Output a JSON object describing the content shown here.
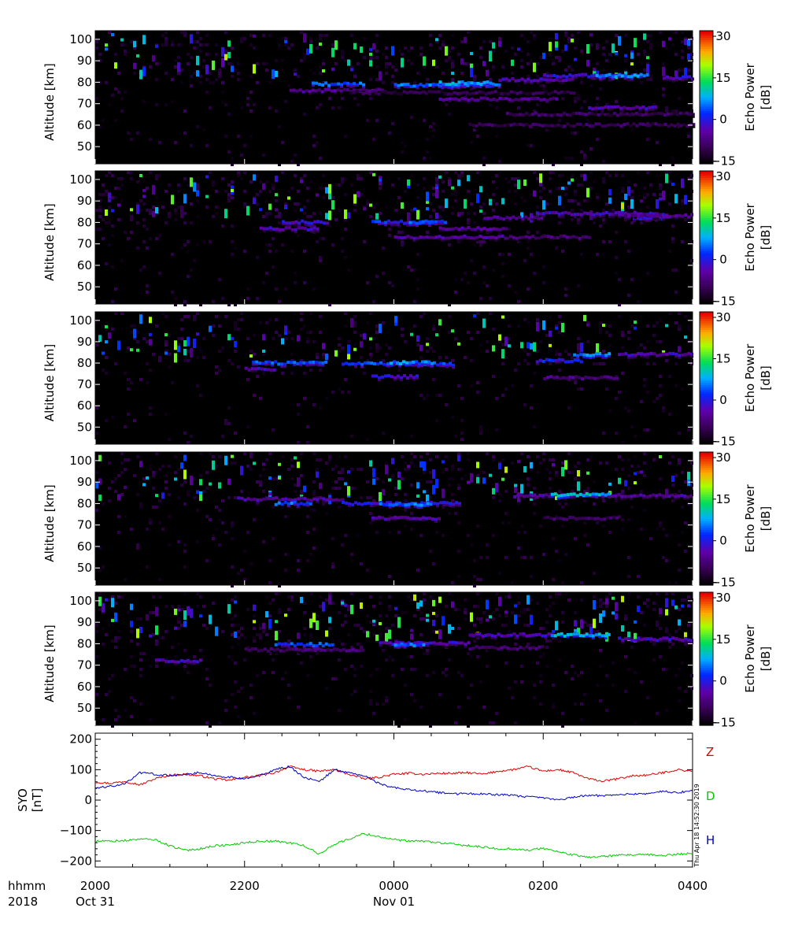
{
  "chart_data": [
    {
      "type": "heatmap",
      "panel": 1,
      "ylabel": "Altitude [km]",
      "yticks": [
        50,
        60,
        70,
        80,
        90,
        100
      ],
      "ylim": [
        42,
        104
      ],
      "colorbar": {
        "label_line1": "Echo Power",
        "label_line2": "[dB]",
        "ticks": [
          -15,
          0,
          15,
          30
        ],
        "range": [
          -16,
          32
        ]
      },
      "layers": [
        {
          "alt": 79,
          "t0": 2.9,
          "t1": 3.6,
          "db": 4
        },
        {
          "alt": 76,
          "t0": 2.6,
          "t1": 3.9,
          "db": -6
        },
        {
          "alt": 78.5,
          "t0": 4.0,
          "t1": 5.4,
          "db": 5
        },
        {
          "alt": 79.5,
          "t0": 4.6,
          "t1": 5.3,
          "db": 7
        },
        {
          "alt": 72,
          "t0": 4.6,
          "t1": 6.2,
          "db": -6
        },
        {
          "alt": 81,
          "t0": 5.4,
          "t1": 6.4,
          "db": -4
        },
        {
          "alt": 83,
          "t0": 6.0,
          "t1": 7.3,
          "db": -2
        },
        {
          "alt": 83,
          "t0": 6.7,
          "t1": 7.4,
          "db": 6
        },
        {
          "alt": 68,
          "t0": 6.6,
          "t1": 7.5,
          "db": -4
        },
        {
          "alt": 65,
          "t0": 5.5,
          "t1": 8.0,
          "db": -10
        },
        {
          "alt": 60,
          "t0": 5.0,
          "t1": 8.0,
          "db": -10
        },
        {
          "alt": 82,
          "t0": 7.6,
          "t1": 8.0,
          "db": -2
        },
        {
          "alt": 75,
          "t0": 3.4,
          "t1": 6.4,
          "db": -11
        }
      ],
      "seed": 11,
      "density": 1.0
    },
    {
      "type": "heatmap",
      "panel": 2,
      "ylabel": "Altitude [km]",
      "yticks": [
        50,
        60,
        70,
        80,
        90,
        100
      ],
      "ylim": [
        42,
        104
      ],
      "colorbar": {
        "label_line1": "Echo Power",
        "label_line2": "[dB]",
        "ticks": [
          -15,
          0,
          15,
          30
        ],
        "range": [
          -16,
          32
        ]
      },
      "layers": [
        {
          "alt": 77,
          "t0": 2.2,
          "t1": 3.0,
          "db": -4
        },
        {
          "alt": 80,
          "t0": 2.5,
          "t1": 3.1,
          "db": -2
        },
        {
          "alt": 80,
          "t0": 3.7,
          "t1": 4.7,
          "db": 1
        },
        {
          "alt": 80,
          "t0": 4.2,
          "t1": 4.5,
          "db": 6
        },
        {
          "alt": 73,
          "t0": 4.0,
          "t1": 5.5,
          "db": -5
        },
        {
          "alt": 77,
          "t0": 4.6,
          "t1": 5.5,
          "db": -6
        },
        {
          "alt": 82,
          "t0": 5.2,
          "t1": 6.0,
          "db": -6
        },
        {
          "alt": 84,
          "t0": 5.9,
          "t1": 7.6,
          "db": -3
        },
        {
          "alt": 73,
          "t0": 5.5,
          "t1": 6.6,
          "db": -8
        },
        {
          "alt": 82,
          "t0": 7.2,
          "t1": 7.6,
          "db": 0
        },
        {
          "alt": 83,
          "t0": 7.0,
          "t1": 8.0,
          "db": -6
        }
      ],
      "seed": 23,
      "density": 1.05
    },
    {
      "type": "heatmap",
      "panel": 3,
      "ylabel": "Altitude [km]",
      "yticks": [
        50,
        60,
        70,
        80,
        90,
        100
      ],
      "ylim": [
        42,
        104
      ],
      "colorbar": {
        "label_line1": "Echo Power",
        "label_line2": "[dB]",
        "ticks": [
          -15,
          0,
          15,
          30
        ],
        "range": [
          -16,
          32
        ]
      },
      "layers": [
        {
          "alt": 80,
          "t0": 2.1,
          "t1": 3.1,
          "db": 3
        },
        {
          "alt": 77,
          "t0": 2.0,
          "t1": 2.4,
          "db": -3
        },
        {
          "alt": 79.5,
          "t0": 3.3,
          "t1": 4.8,
          "db": 3
        },
        {
          "alt": 80,
          "t0": 3.9,
          "t1": 4.5,
          "db": 6
        },
        {
          "alt": 73.5,
          "t0": 3.7,
          "t1": 4.3,
          "db": -2
        },
        {
          "alt": 81,
          "t0": 5.9,
          "t1": 6.5,
          "db": 0
        },
        {
          "alt": 84,
          "t0": 6.4,
          "t1": 6.9,
          "db": 5
        },
        {
          "alt": 73,
          "t0": 6.0,
          "t1": 7.0,
          "db": -7
        },
        {
          "alt": 84,
          "t0": 7.0,
          "t1": 8.0,
          "db": -4
        }
      ],
      "seed": 37,
      "density": 0.8
    },
    {
      "type": "heatmap",
      "panel": 4,
      "ylabel": "Altitude [km]",
      "yticks": [
        50,
        60,
        70,
        80,
        90,
        100
      ],
      "ylim": [
        42,
        104
      ],
      "colorbar": {
        "label_line1": "Echo Power",
        "label_line2": "[dB]",
        "ticks": [
          -15,
          0,
          15,
          30
        ],
        "range": [
          -16,
          32
        ]
      },
      "layers": [
        {
          "alt": 82,
          "t0": 1.9,
          "t1": 3.3,
          "db": -5
        },
        {
          "alt": 80,
          "t0": 2.4,
          "t1": 2.9,
          "db": 4
        },
        {
          "alt": 80,
          "t0": 3.3,
          "t1": 4.9,
          "db": -1
        },
        {
          "alt": 79.5,
          "t0": 3.8,
          "t1": 4.5,
          "db": 5
        },
        {
          "alt": 73,
          "t0": 3.7,
          "t1": 4.6,
          "db": -5
        },
        {
          "alt": 83.5,
          "t0": 5.6,
          "t1": 8.0,
          "db": -5
        },
        {
          "alt": 84,
          "t0": 6.1,
          "t1": 6.9,
          "db": 9
        },
        {
          "alt": 73,
          "t0": 6.0,
          "t1": 7.0,
          "db": -9
        }
      ],
      "seed": 41,
      "density": 1.0
    },
    {
      "type": "heatmap",
      "panel": 5,
      "ylabel": "Altitude [km]",
      "yticks": [
        50,
        60,
        70,
        80,
        90,
        100
      ],
      "ylim": [
        42,
        104
      ],
      "colorbar": {
        "label_line1": "Echo Power",
        "label_line2": "[dB]",
        "ticks": [
          -15,
          0,
          15,
          30
        ],
        "range": [
          -16,
          32
        ]
      },
      "layers": [
        {
          "alt": 72,
          "t0": 0.8,
          "t1": 1.4,
          "db": -3
        },
        {
          "alt": 79.5,
          "t0": 2.4,
          "t1": 3.2,
          "db": 3
        },
        {
          "alt": 77,
          "t0": 2.0,
          "t1": 3.6,
          "db": -8
        },
        {
          "alt": 80,
          "t0": 3.8,
          "t1": 5.0,
          "db": -3
        },
        {
          "alt": 79.5,
          "t0": 4.0,
          "t1": 4.4,
          "db": 4
        },
        {
          "alt": 84,
          "t0": 5.0,
          "t1": 6.2,
          "db": -4
        },
        {
          "alt": 84,
          "t0": 6.1,
          "t1": 6.9,
          "db": 8
        },
        {
          "alt": 78,
          "t0": 5.0,
          "t1": 6.0,
          "db": -8
        },
        {
          "alt": 82,
          "t0": 7.0,
          "t1": 8.0,
          "db": -3
        }
      ],
      "seed": 53,
      "density": 1.1
    },
    {
      "type": "line",
      "panel": 6,
      "ylabel_line1": "SYO",
      "ylabel_line2": "[nT]",
      "yticks": [
        -200,
        -100,
        0,
        100,
        200
      ],
      "ylim": [
        -220,
        220
      ],
      "timestamp": "Thu Apr 18 14:52:30 2019",
      "series": [
        {
          "name": "Z",
          "color": "#e00000",
          "t": [
            0,
            0.2,
            0.4,
            0.6,
            0.8,
            1.0,
            1.2,
            1.4,
            1.6,
            1.8,
            2.0,
            2.2,
            2.4,
            2.6,
            2.8,
            3.0,
            3.2,
            3.4,
            3.6,
            3.8,
            4.0,
            4.2,
            4.4,
            4.6,
            4.8,
            5.0,
            5.2,
            5.4,
            5.6,
            5.8,
            6.0,
            6.2,
            6.4,
            6.6,
            6.8,
            7.0,
            7.2,
            7.4,
            7.6,
            7.8,
            8.0
          ],
          "v": [
            60,
            55,
            62,
            50,
            70,
            82,
            85,
            80,
            70,
            65,
            75,
            80,
            90,
            110,
            100,
            95,
            100,
            85,
            70,
            75,
            85,
            88,
            85,
            88,
            88,
            90,
            85,
            95,
            100,
            110,
            95,
            100,
            90,
            70,
            62,
            70,
            80,
            82,
            90,
            100,
            95
          ]
        },
        {
          "name": "D",
          "color": "#00cc00",
          "t": [
            0,
            0.2,
            0.4,
            0.6,
            0.8,
            1.0,
            1.2,
            1.4,
            1.6,
            1.8,
            2.0,
            2.2,
            2.4,
            2.6,
            2.8,
            3.0,
            3.2,
            3.4,
            3.6,
            3.8,
            4.0,
            4.2,
            4.4,
            4.6,
            4.8,
            5.0,
            5.2,
            5.4,
            5.6,
            5.8,
            6.0,
            6.2,
            6.4,
            6.6,
            6.8,
            7.0,
            7.2,
            7.4,
            7.6,
            7.8,
            8.0
          ],
          "v": [
            -135,
            -135,
            -133,
            -128,
            -130,
            -150,
            -165,
            -160,
            -150,
            -148,
            -140,
            -135,
            -135,
            -140,
            -150,
            -178,
            -145,
            -128,
            -110,
            -120,
            -130,
            -135,
            -135,
            -140,
            -145,
            -150,
            -155,
            -160,
            -160,
            -165,
            -158,
            -170,
            -180,
            -188,
            -185,
            -182,
            -180,
            -180,
            -182,
            -178,
            -175
          ]
        },
        {
          "name": "H",
          "color": "#0000cc",
          "t": [
            0,
            0.2,
            0.4,
            0.6,
            0.8,
            1.0,
            1.2,
            1.4,
            1.6,
            1.8,
            2.0,
            2.2,
            2.4,
            2.6,
            2.8,
            3.0,
            3.2,
            3.4,
            3.6,
            3.8,
            4.0,
            4.2,
            4.4,
            4.6,
            4.8,
            5.0,
            5.2,
            5.4,
            5.6,
            5.8,
            6.0,
            6.2,
            6.4,
            6.6,
            6.8,
            7.0,
            7.2,
            7.4,
            7.6,
            7.8,
            8.0
          ],
          "v": [
            40,
            45,
            55,
            90,
            85,
            80,
            85,
            90,
            80,
            75,
            70,
            80,
            100,
            110,
            75,
            60,
            100,
            90,
            80,
            55,
            40,
            35,
            30,
            25,
            20,
            22,
            20,
            18,
            15,
            10,
            8,
            0,
            10,
            15,
            15,
            18,
            20,
            22,
            28,
            25,
            30
          ]
        }
      ],
      "legend": [
        "Z",
        "D",
        "H"
      ]
    }
  ],
  "xaxis": {
    "row1_label": "hhmm",
    "row2_label": "2018",
    "ticks": [
      {
        "t": 0,
        "label": "2000",
        "date": "Oct 31"
      },
      {
        "t": 2,
        "label": "2200",
        "date": ""
      },
      {
        "t": 4,
        "label": "0000",
        "date": "Nov 01"
      },
      {
        "t": 6,
        "label": "0200",
        "date": ""
      },
      {
        "t": 8,
        "label": "0400",
        "date": ""
      }
    ],
    "range": [
      0,
      8
    ]
  }
}
